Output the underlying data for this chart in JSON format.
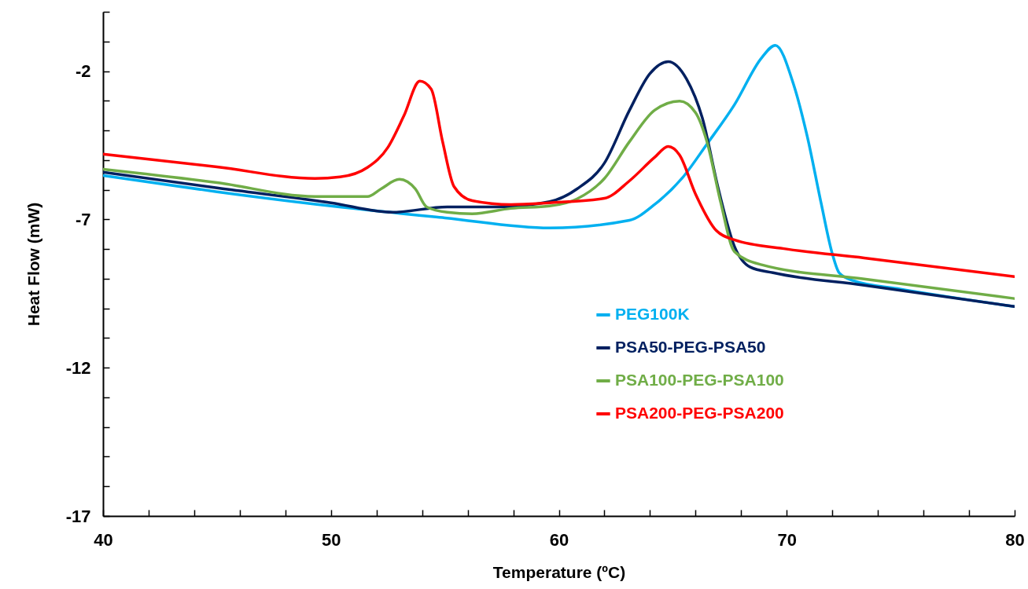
{
  "chart_data": {
    "type": "line",
    "xlabel": "Temperature (ºC)",
    "ylabel": "Heat Flow (mW)",
    "xlim": [
      40,
      80
    ],
    "ylim": [
      -17,
      0
    ],
    "xticks": [
      40,
      {
        "value": 42,
        "label": null
      },
      {
        "value": 44,
        "label": null
      },
      {
        "value": 46,
        "label": null
      },
      {
        "value": 48,
        "label": null
      },
      50,
      {
        "value": 52,
        "label": null
      },
      {
        "value": 54,
        "label": null
      },
      {
        "value": 56,
        "label": null
      },
      {
        "value": 58,
        "label": null
      },
      60,
      {
        "value": 62,
        "label": null
      },
      {
        "value": 64,
        "label": null
      },
      {
        "value": 66,
        "label": null
      },
      {
        "value": 68,
        "label": null
      },
      70,
      {
        "value": 72,
        "label": null
      },
      {
        "value": 74,
        "label": null
      },
      {
        "value": 76,
        "label": null
      },
      {
        "value": 78,
        "label": null
      },
      80
    ],
    "yticks": [
      -17,
      {
        "value": -16,
        "label": null
      },
      {
        "value": -15,
        "label": null
      },
      {
        "value": -14,
        "label": null
      },
      {
        "value": -13,
        "label": null
      },
      -12,
      {
        "value": -11,
        "label": null
      },
      {
        "value": -10,
        "label": null
      },
      {
        "value": -9,
        "label": null
      },
      {
        "value": -8,
        "label": null
      },
      -7,
      {
        "value": -6,
        "label": null
      },
      {
        "value": -5,
        "label": null
      },
      {
        "value": -4,
        "label": null
      },
      {
        "value": -3,
        "label": null
      },
      -2,
      {
        "value": -1,
        "label": null
      },
      {
        "value": 0,
        "label": null
      }
    ],
    "grid": false,
    "legend": "right",
    "marker": "none",
    "line_style": "solid",
    "series": [
      {
        "name": "PEG100K",
        "color": "#00b0f0",
        "x": [
          40,
          45,
          50,
          55,
          59.6,
          63.1,
          64.2,
          65.4,
          66.5,
          67.7,
          68.9,
          69.5,
          70.3,
          70.9,
          71.5,
          72.0,
          72.3,
          72.9,
          75,
          80
        ],
        "values": [
          -5.52,
          -6.07,
          -6.55,
          -6.95,
          -7.29,
          -7.03,
          -6.5,
          -5.62,
          -4.46,
          -3.14,
          -1.55,
          -1.13,
          -2.45,
          -4.2,
          -6.42,
          -8.16,
          -8.8,
          -9.06,
          -9.35,
          -9.94
        ]
      },
      {
        "name": "PSA50-PEG-PSA50",
        "color": "#002060",
        "x": [
          40,
          45,
          50,
          52.7,
          55.1,
          57.3,
          59.6,
          60.8,
          62.0,
          63.1,
          64.0,
          64.8,
          65.6,
          66.3,
          67.0,
          67.7,
          68.4,
          69.4,
          73.4,
          80
        ],
        "values": [
          -5.41,
          -5.94,
          -6.44,
          -6.76,
          -6.58,
          -6.58,
          -6.4,
          -5.97,
          -5.1,
          -3.32,
          -2.08,
          -1.68,
          -2.26,
          -3.59,
          -5.97,
          -7.9,
          -8.61,
          -8.8,
          -9.22,
          -9.94
        ]
      },
      {
        "name": "PSA100-PEG-PSA100",
        "color": "#70ad47",
        "x": [
          40,
          45,
          49.3,
          51.6,
          52.2,
          53.0,
          53.7,
          54.2,
          55.1,
          56.2,
          57.9,
          59.6,
          60.8,
          62.0,
          63.1,
          64.2,
          65.3,
          66.0,
          66.5,
          67.1,
          67.7,
          68.9,
          73.4,
          80
        ],
        "values": [
          -5.31,
          -5.76,
          -6.23,
          -6.23,
          -5.97,
          -5.65,
          -5.97,
          -6.58,
          -6.76,
          -6.81,
          -6.63,
          -6.55,
          -6.31,
          -5.62,
          -4.38,
          -3.32,
          -3.01,
          -3.4,
          -4.38,
          -6.42,
          -8.08,
          -8.53,
          -9.01,
          -9.67
        ]
      },
      {
        "name": "PSA200-PEG-PSA200",
        "color": "#ff0000",
        "x": [
          40,
          45,
          49.3,
          50.4,
          51.6,
          52.5,
          53.2,
          53.9,
          54.4,
          54.9,
          55.4,
          56.2,
          57.9,
          59.6,
          62.0,
          63.1,
          64.2,
          64.8,
          65.3,
          66.0,
          66.9,
          67.7,
          70.0,
          73.4,
          80
        ],
        "values": [
          -4.8,
          -5.23,
          -5.62,
          -5.57,
          -5.25,
          -4.57,
          -3.51,
          -2.34,
          -2.61,
          -4.38,
          -5.89,
          -6.37,
          -6.5,
          -6.44,
          -6.29,
          -5.7,
          -4.91,
          -4.54,
          -4.83,
          -6.15,
          -7.37,
          -7.69,
          -8.0,
          -8.3,
          -8.93
        ]
      }
    ]
  }
}
